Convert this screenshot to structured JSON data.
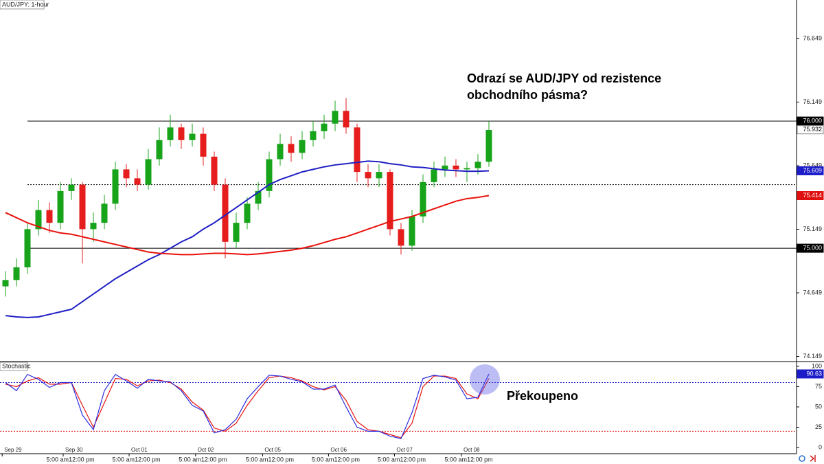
{
  "chart_data": [
    {
      "type": "candlestick",
      "title": "AUD/JPY: 1-hour",
      "annotation": [
        "Odrazí se AUD/JPY od rezistence",
        "obchodního pásma?"
      ],
      "open": [
        74.7,
        74.75,
        74.85,
        75.15,
        75.3,
        75.2,
        75.45,
        75.5,
        75.15,
        75.2,
        75.35,
        75.62,
        75.55,
        75.5,
        75.7,
        75.85,
        75.95,
        75.85,
        75.9,
        75.72,
        75.5,
        75.05,
        75.2,
        75.35,
        75.45,
        75.7,
        75.82,
        75.75,
        75.85,
        75.92,
        75.98,
        76.08,
        75.95,
        75.6,
        75.55,
        75.6,
        75.15,
        75.02,
        75.25,
        75.52,
        75.62,
        75.65,
        75.62,
        75.63,
        75.68
      ],
      "high": [
        74.82,
        74.92,
        75.2,
        75.38,
        75.36,
        75.52,
        75.55,
        75.52,
        75.28,
        75.42,
        75.68,
        75.66,
        75.62,
        75.78,
        75.95,
        76.05,
        75.98,
        75.98,
        75.95,
        75.76,
        75.55,
        75.28,
        75.4,
        75.52,
        75.76,
        75.9,
        75.88,
        75.92,
        76.0,
        76.05,
        76.16,
        76.18,
        75.98,
        75.66,
        75.66,
        75.62,
        75.2,
        75.3,
        75.58,
        75.68,
        75.72,
        75.7,
        75.68,
        75.74,
        76.0
      ],
      "low": [
        74.62,
        74.7,
        74.8,
        75.1,
        75.12,
        75.15,
        75.38,
        74.88,
        75.05,
        75.15,
        75.3,
        75.48,
        75.45,
        75.46,
        75.65,
        75.8,
        75.78,
        75.8,
        75.65,
        75.45,
        74.92,
        75.0,
        75.15,
        75.3,
        75.4,
        75.65,
        75.68,
        75.7,
        75.8,
        75.86,
        75.92,
        75.9,
        75.52,
        75.48,
        75.48,
        75.1,
        74.95,
        74.98,
        75.2,
        75.48,
        75.56,
        75.56,
        75.52,
        75.58,
        75.64
      ],
      "close": [
        74.75,
        74.85,
        75.15,
        75.3,
        75.2,
        75.45,
        75.5,
        75.15,
        75.2,
        75.35,
        75.62,
        75.55,
        75.5,
        75.7,
        75.85,
        75.95,
        75.85,
        75.9,
        75.72,
        75.5,
        75.05,
        75.2,
        75.35,
        75.45,
        75.7,
        75.82,
        75.75,
        75.85,
        75.92,
        75.98,
        76.08,
        75.95,
        75.6,
        75.55,
        75.6,
        75.15,
        75.02,
        75.25,
        75.52,
        75.62,
        75.65,
        75.62,
        75.63,
        75.68,
        75.93
      ],
      "up_color": "#17a31a",
      "down_color": "#e51d1d",
      "overlays": [
        {
          "color": "#1f1fc4",
          "values": [
            74.47,
            74.46,
            74.455,
            74.46,
            74.48,
            74.5,
            74.52,
            74.58,
            74.64,
            74.7,
            74.76,
            74.81,
            74.86,
            74.91,
            74.95,
            75.0,
            75.05,
            75.09,
            75.15,
            75.2,
            75.26,
            75.32,
            75.38,
            75.44,
            75.5,
            75.54,
            75.57,
            75.6,
            75.62,
            75.64,
            75.655,
            75.665,
            75.675,
            75.685,
            75.68,
            75.665,
            75.655,
            75.64,
            75.635,
            75.625,
            75.615,
            75.61,
            75.605,
            75.605,
            75.609
          ]
        },
        {
          "color": "#e8120c",
          "values": [
            75.28,
            75.24,
            75.2,
            75.17,
            75.14,
            75.12,
            75.11,
            75.09,
            75.07,
            75.05,
            75.03,
            75.01,
            74.99,
            74.97,
            74.96,
            74.955,
            74.95,
            74.95,
            74.955,
            74.96,
            74.96,
            74.955,
            74.95,
            74.955,
            74.965,
            74.975,
            74.985,
            75.0,
            75.02,
            75.045,
            75.07,
            75.09,
            75.12,
            75.15,
            75.18,
            75.21,
            75.23,
            75.25,
            75.28,
            75.31,
            75.34,
            75.37,
            75.39,
            75.4,
            75.414
          ]
        }
      ],
      "levels": [
        {
          "value": 76,
          "dash": false
        },
        {
          "value": 75.5,
          "dash": true
        },
        {
          "value": 75,
          "dash": false
        }
      ],
      "price_tags": [
        {
          "value": 76.0,
          "label": "76.000",
          "color": "#000000"
        },
        {
          "value": 75.932,
          "label": "75.932",
          "color": "#ffffff"
        },
        {
          "value": 75.609,
          "label": "75.609",
          "color": "#1c1cc8"
        },
        {
          "value": 75.414,
          "label": "75.414",
          "color": "#e01010"
        },
        {
          "value": 75.0,
          "label": "75.000",
          "color": "#000000"
        }
      ],
      "ylim": [
        74.114,
        76.952
      ],
      "yticks": [
        76.649,
        76.149,
        75.649,
        75.149,
        74.649,
        74.149
      ],
      "xticks": [
        {
          "value": -0.3,
          "label": "Sep 29"
        },
        {
          "value": 5.25,
          "label": "Sep 30"
        },
        {
          "value": 11.25,
          "label": "Oct 01"
        },
        {
          "value": 17.3,
          "label": "Oct 02"
        },
        {
          "value": 23.4,
          "label": "Oct 05"
        },
        {
          "value": 29.4,
          "label": "Oct 06"
        },
        {
          "value": 35.4,
          "label": "Oct 07"
        },
        {
          "value": 41.5,
          "label": "Oct 08"
        }
      ],
      "time_ticks": [
        {
          "value": 5.75,
          "label": "5:00 am"
        },
        {
          "value": 8.1,
          "label": "12:00 pm"
        },
        {
          "value": 11.75,
          "label": "5:00 am"
        },
        {
          "value": 14.1,
          "label": "12:00 pm"
        },
        {
          "value": 17.8,
          "label": "5:00 am"
        },
        {
          "value": 20.15,
          "label": "12:00 pm"
        },
        {
          "value": 23.9,
          "label": "5:00 am"
        },
        {
          "value": 26.25,
          "label": "12:00 pm"
        },
        {
          "value": 29.9,
          "label": "5:00 am"
        },
        {
          "value": 32.25,
          "label": "12:00 pm"
        },
        {
          "value": 35.9,
          "label": "5:00 am"
        },
        {
          "value": 38.25,
          "label": "12:00 pm"
        },
        {
          "value": 42.0,
          "label": "5:00 am"
        },
        {
          "value": 44.35,
          "label": "12:00 pm"
        }
      ]
    },
    {
      "type": "line",
      "title": "Stochastic",
      "annotation": "Překoupeno",
      "series": [
        {
          "color": "#e8120c",
          "values": [
            78,
            75,
            82,
            86,
            78,
            78,
            80,
            52,
            25,
            55,
            85,
            84,
            76,
            82,
            83,
            80,
            72,
            56,
            46,
            24,
            20,
            30,
            52,
            70,
            86,
            88,
            86,
            82,
            75,
            71,
            75,
            58,
            32,
            22,
            20,
            16,
            12,
            30,
            75,
            88,
            88,
            85,
            66,
            60,
            85
          ]
        },
        {
          "color": "#2a2ae0",
          "values": [
            80,
            70,
            90,
            84,
            74,
            80,
            80,
            40,
            22,
            70,
            90,
            82,
            73,
            84,
            82,
            81,
            70,
            52,
            45,
            18,
            22,
            35,
            60,
            75,
            89,
            88,
            84,
            81,
            72,
            72,
            77,
            50,
            25,
            20,
            20,
            14,
            11,
            43,
            85,
            89,
            87,
            83,
            60,
            62,
            90.63
          ]
        }
      ],
      "levels": [
        {
          "value": 80,
          "color": "#1c1cc8"
        },
        {
          "value": 20,
          "color": "#e01010"
        }
      ],
      "price_tags": [
        {
          "value": 90.63,
          "label": "90.63",
          "color": "#1c1cc8"
        }
      ],
      "ylim": [
        -7.6,
        105
      ],
      "yticks": [
        100,
        75,
        50,
        25,
        0
      ]
    }
  ]
}
